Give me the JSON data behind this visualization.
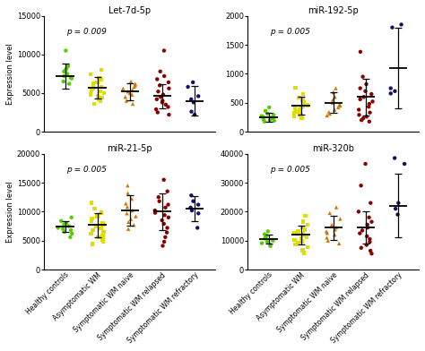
{
  "panels": [
    {
      "title": "Let-7d-5p",
      "pvalue": "p = 0.009",
      "ylim": [
        0,
        15000
      ],
      "yticks": [
        0,
        5000,
        10000,
        15000
      ],
      "groups": [
        {
          "color": "#55cc00",
          "marker": "o",
          "mean": 7200,
          "sd": 1600,
          "points": [
            10500,
            8500,
            8200,
            8000,
            7800,
            7500,
            7200,
            7000,
            6900,
            6500,
            6200
          ]
        },
        {
          "color": "#dddd00",
          "marker": "s",
          "mean": 5700,
          "sd": 1400,
          "points": [
            8000,
            7400,
            7000,
            6700,
            6400,
            6200,
            6000,
            5800,
            5600,
            5400,
            5200,
            5000,
            4800,
            4600,
            4400,
            4200,
            4000,
            3600
          ]
        },
        {
          "color": "#cc7700",
          "marker": "^",
          "mean": 5200,
          "sd": 1100,
          "points": [
            6500,
            6200,
            6000,
            5800,
            5600,
            5400,
            5200,
            5000,
            4800,
            4500,
            4000,
            3600
          ]
        },
        {
          "color": "#880000",
          "marker": "o",
          "mean": 4600,
          "sd": 1600,
          "points": [
            10500,
            7800,
            7200,
            6800,
            6400,
            6000,
            5600,
            5200,
            4800,
            4500,
            4200,
            4000,
            3800,
            3500,
            3200,
            2900,
            2500,
            2200
          ]
        },
        {
          "color": "#111166",
          "marker": "o",
          "mean": 4000,
          "sd": 1900,
          "points": [
            6400,
            5800,
            4600,
            4200,
            3800,
            2600,
            2200
          ]
        }
      ]
    },
    {
      "title": "miR-192-5p",
      "pvalue": "p = 0.005",
      "ylim": [
        0,
        2000
      ],
      "yticks": [
        0,
        500,
        1000,
        1500,
        2000
      ],
      "groups": [
        {
          "color": "#55cc00",
          "marker": "o",
          "mean": 250,
          "sd": 80,
          "points": [
            420,
            360,
            310,
            290,
            270,
            255,
            240,
            225,
            210,
            200,
            190,
            175
          ]
        },
        {
          "color": "#dddd00",
          "marker": "s",
          "mean": 450,
          "sd": 160,
          "points": [
            760,
            650,
            590,
            550,
            510,
            480,
            460,
            440,
            420,
            400,
            380,
            360,
            340,
            320,
            300,
            280,
            260,
            230
          ]
        },
        {
          "color": "#cc7700",
          "marker": "^",
          "mean": 500,
          "sd": 180,
          "points": [
            750,
            680,
            600,
            550,
            500,
            470,
            450,
            420,
            380,
            340,
            310,
            280
          ]
        },
        {
          "color": "#880000",
          "marker": "o",
          "mean": 600,
          "sd": 320,
          "points": [
            1380,
            950,
            820,
            750,
            700,
            650,
            600,
            560,
            520,
            480,
            430,
            380,
            330,
            290,
            260,
            230,
            200,
            175
          ]
        },
        {
          "color": "#111166",
          "marker": "o",
          "mean": 1100,
          "sd": 700,
          "points": [
            1850,
            1800,
            750,
            700,
            660
          ]
        }
      ]
    },
    {
      "title": "miR-21-5p",
      "pvalue": "p = 0.005",
      "ylim": [
        0,
        20000
      ],
      "yticks": [
        0,
        5000,
        10000,
        15000,
        20000
      ],
      "groups": [
        {
          "color": "#55cc00",
          "marker": "o",
          "mean": 7400,
          "sd": 900,
          "points": [
            9000,
            8400,
            8000,
            7800,
            7500,
            7200,
            7000,
            6800,
            6500,
            6200,
            5600
          ]
        },
        {
          "color": "#dddd00",
          "marker": "s",
          "mean": 7700,
          "sd": 2100,
          "points": [
            11500,
            10500,
            9800,
            9200,
            8800,
            8400,
            8000,
            7700,
            7400,
            7100,
            6800,
            6500,
            6200,
            5900,
            5600,
            5200,
            4800,
            4400
          ]
        },
        {
          "color": "#cc7700",
          "marker": "^",
          "mean": 10200,
          "sd": 2600,
          "points": [
            14500,
            13200,
            12200,
            11400,
            10800,
            10200,
            9700,
            9200,
            8700,
            8200,
            7700,
            7000
          ]
        },
        {
          "color": "#880000",
          "marker": "o",
          "mean": 10000,
          "sd": 3200,
          "points": [
            15500,
            13500,
            12500,
            11800,
            11200,
            10700,
            10200,
            9800,
            9400,
            9000,
            8500,
            7900,
            7200,
            6400,
            5600,
            4800,
            4100
          ]
        },
        {
          "color": "#111166",
          "marker": "o",
          "mean": 10500,
          "sd": 2200,
          "points": [
            12800,
            11800,
            11200,
            10700,
            10200,
            9700,
            7200
          ]
        }
      ]
    },
    {
      "title": "miR-320b",
      "pvalue": "p = 0.005",
      "ylim": [
        0,
        40000
      ],
      "yticks": [
        0,
        10000,
        20000,
        30000,
        40000
      ],
      "groups": [
        {
          "color": "#55cc00",
          "marker": "o",
          "mean": 10500,
          "sd": 1600,
          "points": [
            13200,
            12200,
            11700,
            11200,
            10700,
            10300,
            10000,
            9600,
            9100,
            8600,
            8100
          ]
        },
        {
          "color": "#dddd00",
          "marker": "s",
          "mean": 12000,
          "sd": 3200,
          "points": [
            18500,
            16500,
            15500,
            14500,
            13800,
            13200,
            12700,
            12200,
            11700,
            11200,
            10700,
            10200,
            9700,
            9200,
            8700,
            7700,
            6700,
            5700
          ]
        },
        {
          "color": "#cc7700",
          "marker": "^",
          "mean": 14500,
          "sd": 4200,
          "points": [
            21500,
            19500,
            17500,
            15500,
            14500,
            13800,
            13200,
            12600,
            12000,
            11000,
            10000,
            9000
          ]
        },
        {
          "color": "#880000",
          "marker": "o",
          "mean": 14500,
          "sd": 5500,
          "points": [
            36500,
            29000,
            23000,
            20000,
            18000,
            16500,
            15500,
            14500,
            13500,
            12500,
            11500,
            10500,
            9500,
            8500,
            7500,
            6500,
            5500
          ]
        },
        {
          "color": "#111166",
          "marker": "o",
          "mean": 22000,
          "sd": 11000,
          "points": [
            38500,
            36500,
            23000,
            21000,
            19000
          ]
        }
      ]
    }
  ],
  "xlabel_groups": [
    "Healthy controls",
    "Asymptomatic WM",
    "Symptomatic WM naive",
    "Symptomatic WM relapsed",
    "Symptomatic WM refractory"
  ],
  "ylabel": "Expression level",
  "background_color": "#ffffff"
}
